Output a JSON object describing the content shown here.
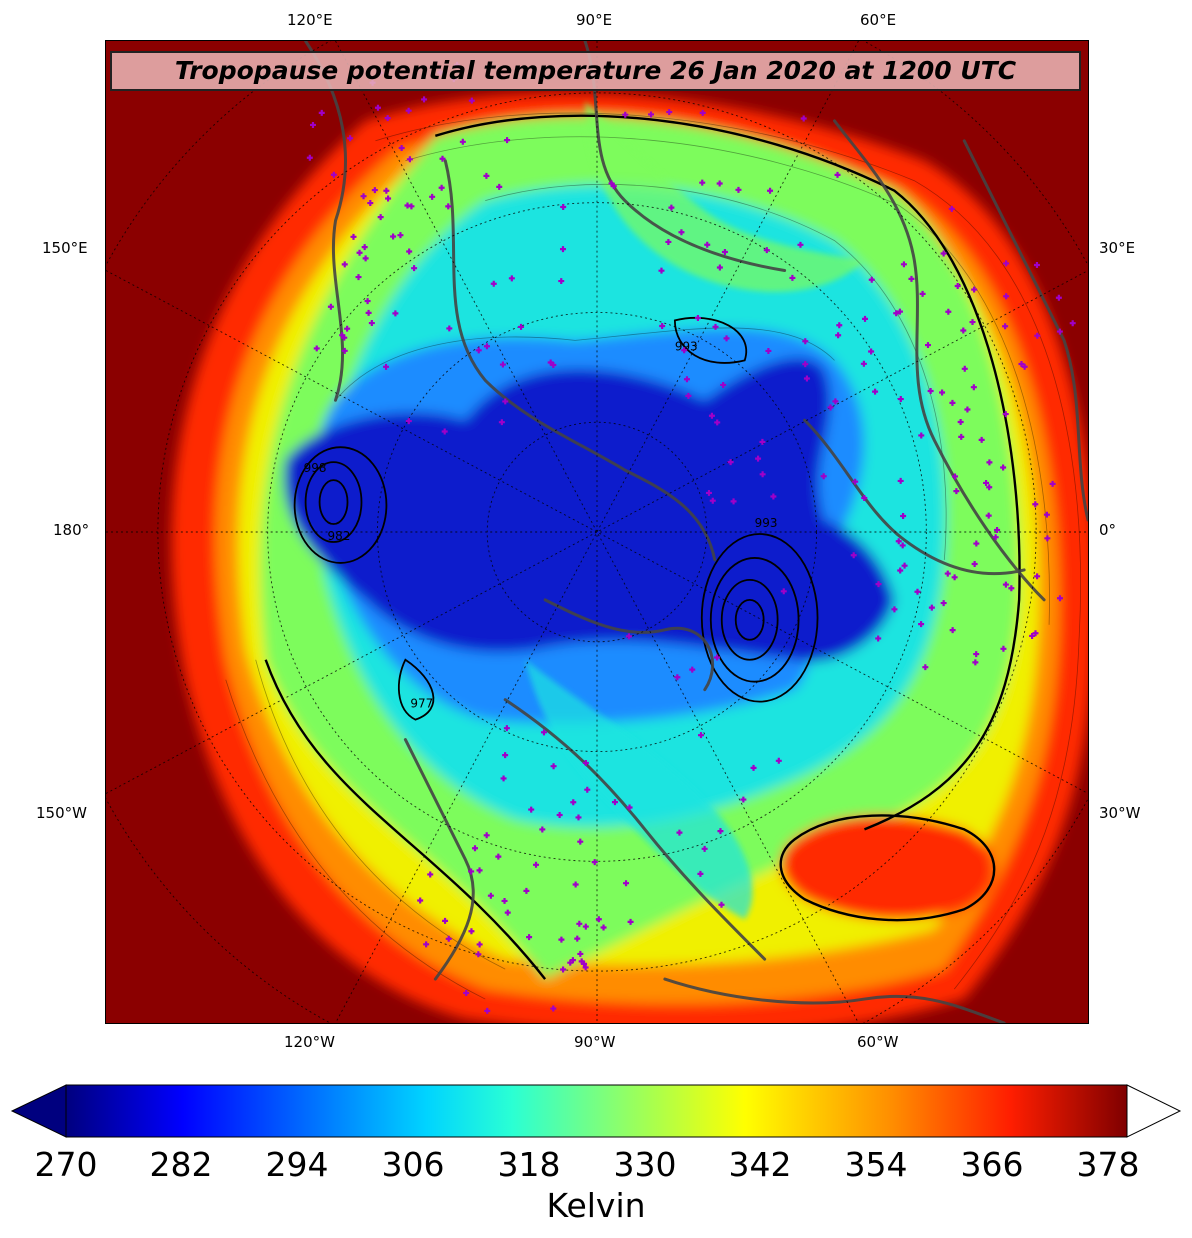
{
  "title": "Tropopause potential temperature 26 Jan 2020 at 1200 UTC",
  "colors": {
    "outer": "#8b0000",
    "ring_red": "#ff2a00",
    "ring_orange": "#ff8c00",
    "ring_yellow": "#f0f000",
    "ring_green": "#7dfc5c",
    "core_cyan": "#1ee4e0",
    "core_blue": "#1e8cff",
    "core_deep": "#0a1ecc",
    "land": "#444444",
    "station_marker": "#a000c8"
  },
  "labels": {
    "top": [
      "120°E",
      "90°E",
      "60°E"
    ],
    "bottom": [
      "120°W",
      "90°W",
      "60°W"
    ],
    "left": [
      "150°E",
      "180°",
      "150°W"
    ],
    "right": [
      "30°E",
      "0°",
      "30°W"
    ]
  },
  "contour_labels": [
    "998",
    "982",
    "993",
    "977",
    "993"
  ],
  "colorbar": {
    "ticks": [
      "270",
      "282",
      "294",
      "306",
      "318",
      "330",
      "342",
      "354",
      "366",
      "378"
    ],
    "label": "Kelvin",
    "min": 270,
    "max": 381
  }
}
